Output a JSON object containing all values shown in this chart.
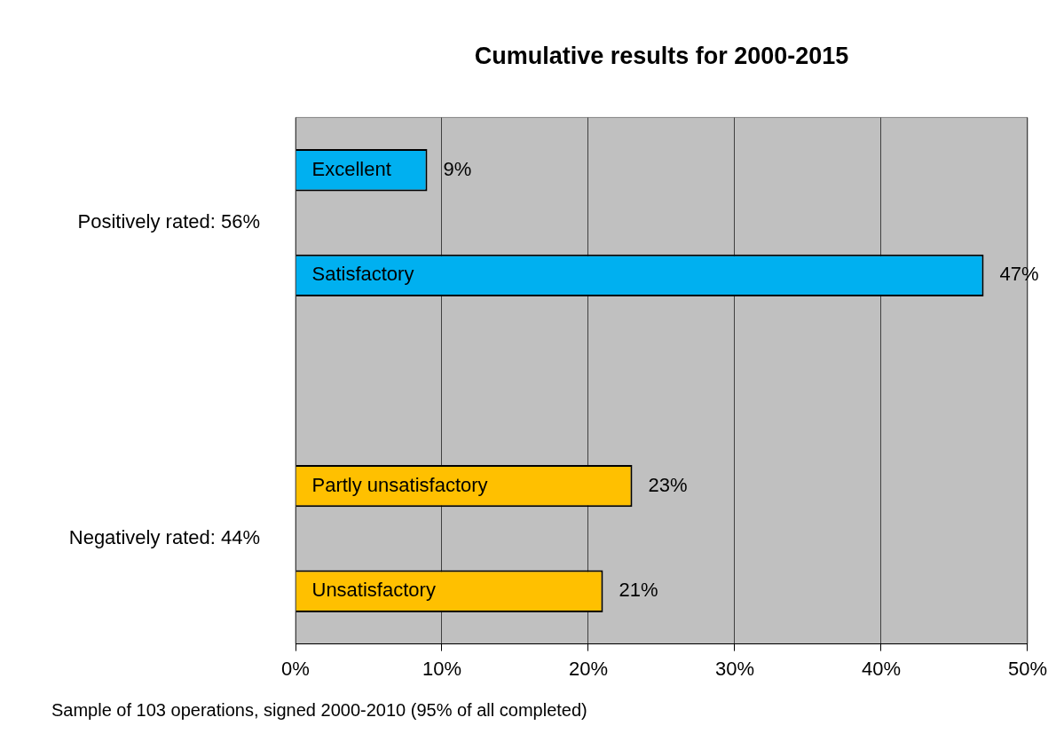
{
  "chart_data": {
    "type": "bar",
    "orientation": "horizontal",
    "title": "Cumulative results for 2000-2015",
    "categories": [
      "Excellent",
      "Satisfactory",
      null,
      "Partly unsatisfactory",
      "Unsatisfactory"
    ],
    "values": [
      9,
      47,
      null,
      23,
      21
    ],
    "colors": [
      "#00b0f0",
      "#00b0f0",
      "#00b0f0",
      "#ffc000",
      "#ffc000"
    ],
    "value_labels": [
      "9%",
      "47%",
      null,
      "23%",
      "21%"
    ],
    "xlim": [
      0,
      50
    ],
    "xticks": [
      {
        "value": 0,
        "label": "0%"
      },
      {
        "value": 10,
        "label": "10%"
      },
      {
        "value": 20,
        "label": "20%"
      },
      {
        "value": 30,
        "label": "30%"
      },
      {
        "value": 40,
        "label": "40%"
      },
      {
        "value": 50,
        "label": "50%"
      }
    ],
    "grid": "x",
    "tick_labels": "x",
    "annotations": [
      "Positively rated: 56%",
      "Negatively rated: 44%",
      "Sample of 103 operations, signed 2000-2010 (95% of all completed)"
    ]
  }
}
